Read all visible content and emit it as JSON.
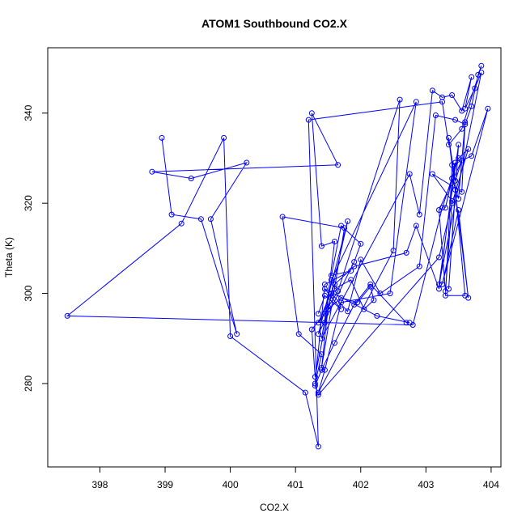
{
  "chart_data": {
    "type": "line",
    "title": "ATOM1 Southbound CO2.X",
    "xlabel": "CO2.X",
    "ylabel": "Theta (K)",
    "xlim": [
      397.2,
      404.15
    ],
    "ylim": [
      261.5,
      354.5
    ],
    "xticks": [
      398,
      399,
      400,
      401,
      402,
      403,
      404
    ],
    "yticks": [
      280,
      300,
      320,
      340
    ],
    "color": "#0000ff",
    "markers": "open-circle",
    "grid": false,
    "series": [
      {
        "x": [
          398.95,
          399.1,
          399.55,
          400.1,
          399.7,
          400.25,
          399.4,
          398.8,
          401.65,
          401.25,
          401.4,
          401.6,
          401.45,
          401.8,
          401.35,
          401.9,
          402.0,
          401.7,
          401.55,
          401.85,
          401.45,
          401.3,
          401.4,
          401.05,
          400.8,
          401.75,
          401.4,
          401.5,
          401.65,
          402.6,
          402.5,
          401.35,
          401.45,
          401.7,
          402.45,
          402.85,
          401.55,
          401.4,
          402.75,
          402.9,
          403.1,
          403.25,
          403.4,
          403.55,
          403.7,
          403.6,
          403.75,
          403.85,
          403.2,
          403.5,
          403.35,
          403.45,
          403.6,
          403.3,
          403.4,
          403.7,
          403.95,
          403.25,
          403.5,
          403.65,
          403.35,
          403.45,
          403.55,
          403.2,
          403.3,
          403.4,
          403.1,
          403.55,
          403.6,
          403.5,
          403.4,
          403.3,
          403.45,
          403.2,
          402.85,
          402.7,
          401.9,
          401.6,
          401.35,
          401.5,
          401.7,
          401.95,
          402.15,
          402.2,
          402.05,
          401.85,
          401.6,
          401.45,
          401.25,
          401.3,
          401.55,
          401.8,
          402.0,
          402.3,
          402.9,
          403.15,
          403.45,
          403.6,
          403.7,
          403.8,
          403.85,
          403.55,
          403.35,
          403.25,
          401.2,
          401.35,
          401.15,
          400.0,
          399.9,
          399.25,
          397.5,
          402.8,
          403.25,
          403.5,
          403.65,
          403.4,
          403.2,
          401.35,
          401.3,
          401.4,
          401.6,
          401.9,
          402.15,
          402.7,
          402.75,
          402.25,
          401.45,
          401.7,
          401.45,
          401.35
        ],
        "y": [
          334.5,
          317.5,
          316.5,
          291.0,
          316.5,
          329.0,
          325.5,
          327.0,
          328.5,
          340.0,
          310.5,
          311.5,
          293.5,
          316.0,
          291.0,
          307.0,
          311.0,
          315.0,
          304.0,
          305.0,
          302.0,
          280.0,
          286.5,
          291.0,
          317.0,
          314.5,
          283.5,
          297.0,
          300.5,
          343.0,
          309.5,
          278.0,
          283.0,
          298.0,
          300.0,
          342.5,
          303.0,
          290.0,
          326.5,
          317.5,
          345.0,
          343.5,
          344.0,
          340.5,
          348.0,
          341.0,
          345.5,
          349.0,
          302.0,
          333.0,
          301.0,
          323.0,
          299.5,
          299.5,
          328.5,
          330.5,
          341.0,
          302.0,
          318.5,
          299.0,
          334.5,
          325.0,
          329.5,
          318.5,
          300.5,
          320.5,
          326.5,
          322.5,
          338.0,
          321.0,
          325.5,
          319.0,
          329.0,
          301.0,
          315.0,
          309.0,
          306.0,
          302.0,
          293.5,
          296.5,
          299.0,
          298.0,
          301.5,
          298.5,
          296.5,
          303.0,
          301.0,
          295.5,
          292.0,
          281.5,
          300.0,
          296.0,
          307.5,
          300.0,
          306.0,
          339.5,
          338.5,
          337.5,
          341.5,
          348.5,
          350.5,
          336.5,
          333.0,
          342.5,
          338.5,
          266.0,
          278.0,
          290.5,
          334.5,
          315.5,
          295.0,
          293.0,
          319.0,
          330.0,
          332.0,
          320.0,
          308.0,
          277.5,
          279.5,
          283.0,
          289.0,
          297.5,
          302.0,
          293.5,
          293.5,
          295.0,
          301.0,
          296.5,
          299.5,
          295.5
        ]
      }
    ]
  }
}
